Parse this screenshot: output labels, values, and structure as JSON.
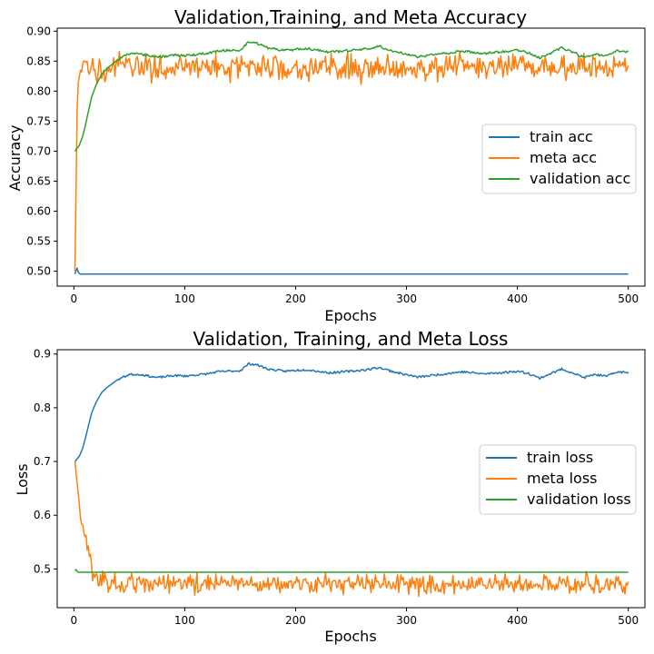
{
  "chart_data": [
    {
      "type": "line",
      "title": "Validation,Training, and Meta Accuracy",
      "xlabel": "Epochs",
      "ylabel": "Accuracy",
      "xlim": [
        -15,
        515
      ],
      "ylim": [
        0.475,
        0.905
      ],
      "xticks": [
        0,
        100,
        200,
        300,
        400,
        500
      ],
      "xtick_labels": [
        "0",
        "100",
        "200",
        "300",
        "400",
        "500"
      ],
      "yticks": [
        0.5,
        0.55,
        0.6,
        0.65,
        0.7,
        0.75,
        0.8,
        0.85,
        0.9
      ],
      "ytick_labels": [
        "0.50",
        "0.55",
        "0.60",
        "0.65",
        "0.70",
        "0.75",
        "0.80",
        "0.85",
        "0.90"
      ],
      "grid": false,
      "legend_position": "right",
      "series": [
        {
          "name": "train acc",
          "color": "#1f77b4",
          "style": "flat",
          "x": [
            1,
            2,
            3,
            4,
            5,
            6,
            8,
            500
          ],
          "y": [
            0.495,
            0.501,
            0.505,
            0.498,
            0.496,
            0.495,
            0.495,
            0.495
          ]
        },
        {
          "name": "meta acc",
          "color": "#ff7f0e",
          "style": "noisy",
          "x": [
            1,
            2,
            3,
            4,
            5,
            6,
            7,
            8,
            10,
            12,
            15,
            20,
            30,
            50,
            100,
            200,
            300,
            400,
            500
          ],
          "y": [
            0.5,
            0.64,
            0.77,
            0.81,
            0.825,
            0.83,
            0.835,
            0.838,
            0.84,
            0.84,
            0.841,
            0.84,
            0.84,
            0.84,
            0.84,
            0.84,
            0.84,
            0.84,
            0.84
          ],
          "noise": 0.011
        },
        {
          "name": "validation acc",
          "color": "#2ca02c",
          "style": "smooth",
          "x": [
            1,
            3,
            5,
            8,
            10,
            13,
            16,
            20,
            25,
            30,
            40,
            50,
            60,
            75,
            90,
            100,
            120,
            130,
            140,
            150,
            158,
            165,
            175,
            190,
            210,
            230,
            250,
            265,
            275,
            290,
            310,
            330,
            350,
            370,
            390,
            400,
            410,
            420,
            440,
            450,
            460,
            470,
            480,
            490,
            500
          ],
          "y": [
            0.7,
            0.705,
            0.71,
            0.725,
            0.74,
            0.765,
            0.79,
            0.81,
            0.828,
            0.838,
            0.853,
            0.862,
            0.862,
            0.856,
            0.86,
            0.859,
            0.863,
            0.867,
            0.868,
            0.869,
            0.882,
            0.88,
            0.872,
            0.868,
            0.871,
            0.865,
            0.868,
            0.871,
            0.875,
            0.866,
            0.857,
            0.862,
            0.867,
            0.863,
            0.866,
            0.868,
            0.864,
            0.855,
            0.872,
            0.865,
            0.856,
            0.862,
            0.858,
            0.867,
            0.865
          ]
        }
      ]
    },
    {
      "type": "line",
      "title": "Validation, Training, and Meta Loss",
      "xlabel": "Epochs",
      "ylabel": "Loss",
      "xlim": [
        -15,
        515
      ],
      "ylim": [
        0.428,
        0.908
      ],
      "xticks": [
        0,
        100,
        200,
        300,
        400,
        500
      ],
      "xtick_labels": [
        "0",
        "100",
        "200",
        "300",
        "400",
        "500"
      ],
      "yticks": [
        0.5,
        0.6,
        0.7,
        0.8,
        0.9
      ],
      "ytick_labels": [
        "0.5",
        "0.6",
        "0.7",
        "0.8",
        "0.9"
      ],
      "grid": false,
      "legend_position": "right",
      "series": [
        {
          "name": "train loss",
          "color": "#1f77b4",
          "style": "smooth",
          "x": [
            1,
            3,
            5,
            8,
            10,
            13,
            16,
            20,
            25,
            30,
            40,
            50,
            60,
            75,
            90,
            100,
            120,
            130,
            140,
            150,
            158,
            165,
            175,
            190,
            210,
            230,
            250,
            265,
            275,
            290,
            310,
            330,
            350,
            370,
            390,
            400,
            410,
            420,
            440,
            450,
            460,
            470,
            480,
            490,
            500
          ],
          "y": [
            0.7,
            0.705,
            0.71,
            0.725,
            0.74,
            0.765,
            0.79,
            0.81,
            0.828,
            0.838,
            0.853,
            0.862,
            0.862,
            0.856,
            0.86,
            0.859,
            0.863,
            0.867,
            0.868,
            0.869,
            0.882,
            0.88,
            0.872,
            0.868,
            0.871,
            0.865,
            0.868,
            0.871,
            0.875,
            0.866,
            0.857,
            0.862,
            0.867,
            0.863,
            0.866,
            0.868,
            0.864,
            0.855,
            0.872,
            0.865,
            0.856,
            0.862,
            0.858,
            0.867,
            0.865
          ]
        },
        {
          "name": "meta loss",
          "color": "#ff7f0e",
          "style": "noisy",
          "x": [
            1,
            2,
            4,
            6,
            8,
            10,
            12,
            14,
            16,
            18,
            20,
            25,
            30,
            50,
            100,
            200,
            300,
            400,
            500
          ],
          "y": [
            0.7,
            0.68,
            0.64,
            0.6,
            0.58,
            0.56,
            0.54,
            0.53,
            0.51,
            0.49,
            0.485,
            0.478,
            0.475,
            0.472,
            0.472,
            0.472,
            0.472,
            0.472,
            0.472
          ],
          "noise": 0.009
        },
        {
          "name": "validation loss",
          "color": "#2ca02c",
          "style": "flat",
          "x": [
            1,
            2,
            3,
            4,
            6,
            500
          ],
          "y": [
            0.497,
            0.499,
            0.495,
            0.494,
            0.494,
            0.494
          ]
        }
      ]
    }
  ]
}
